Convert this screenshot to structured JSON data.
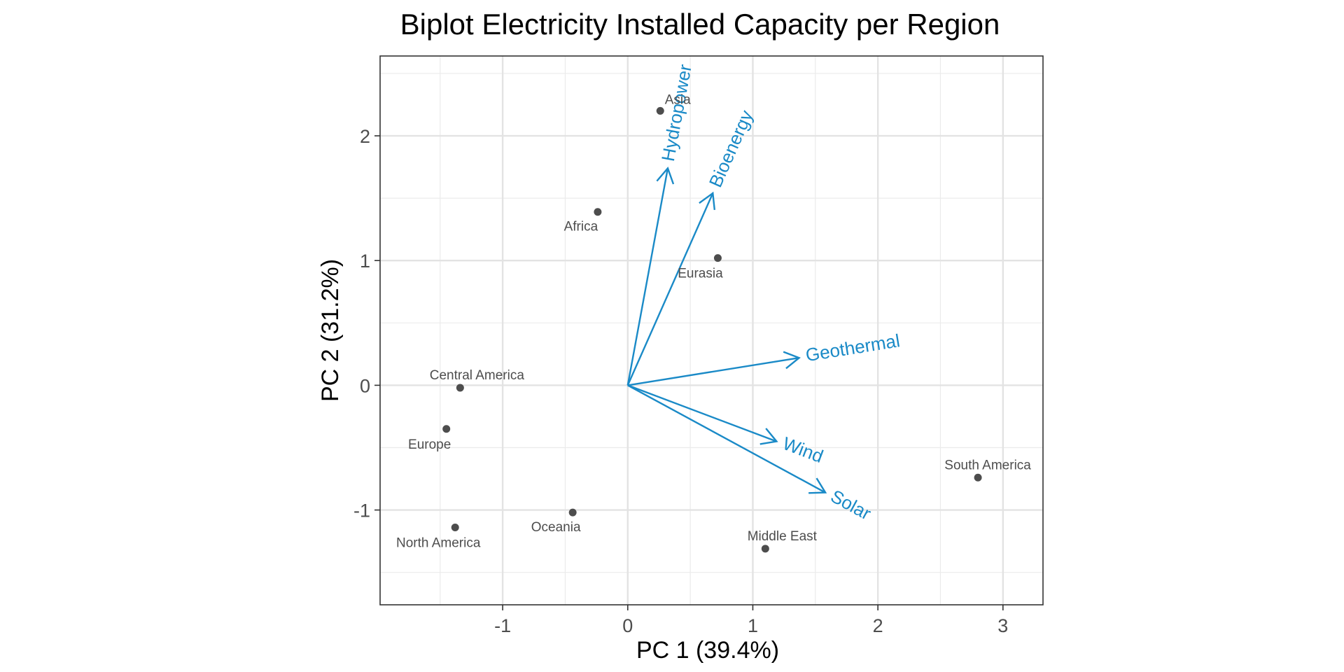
{
  "chart_data": {
    "type": "scatter",
    "title": "Biplot Electricity Installed Capacity per Region",
    "xlabel": "PC 1 (39.4%)",
    "ylabel": "PC 2 (31.2%)",
    "xlim": [
      -1.98,
      3.32
    ],
    "ylim": [
      -1.76,
      2.64
    ],
    "x_ticks": [
      -1,
      0,
      1,
      2,
      3
    ],
    "y_ticks": [
      -1,
      0,
      1,
      2
    ],
    "x_minor": [
      -1.5,
      -0.5,
      0.5,
      1.5,
      2.5
    ],
    "y_minor": [
      -1.5,
      -0.5,
      0.5,
      1.5,
      2.5
    ],
    "grid": true,
    "point_color": "#4d4d4d",
    "loading_color": "#1a8ac7",
    "points": [
      {
        "label": "Asia",
        "x": 0.26,
        "y": 2.2
      },
      {
        "label": "Africa",
        "x": -0.24,
        "y": 1.39
      },
      {
        "label": "Eurasia",
        "x": 0.72,
        "y": 1.02
      },
      {
        "label": "Central America",
        "x": -1.34,
        "y": -0.02
      },
      {
        "label": "Europe",
        "x": -1.45,
        "y": -0.35
      },
      {
        "label": "North America",
        "x": -1.38,
        "y": -1.14
      },
      {
        "label": "Oceania",
        "x": -0.44,
        "y": -1.02
      },
      {
        "label": "Middle East",
        "x": 1.1,
        "y": -1.31
      },
      {
        "label": "South America",
        "x": 2.8,
        "y": -0.74
      }
    ],
    "loadings": [
      {
        "label": "Hydropower",
        "x": 0.32,
        "y": 1.74
      },
      {
        "label": "Bioenergy",
        "x": 0.68,
        "y": 1.54
      },
      {
        "label": "Geothermal",
        "x": 1.37,
        "y": 0.22
      },
      {
        "label": "Wind",
        "x": 1.19,
        "y": -0.45
      },
      {
        "label": "Solar",
        "x": 1.58,
        "y": -0.86
      }
    ]
  }
}
